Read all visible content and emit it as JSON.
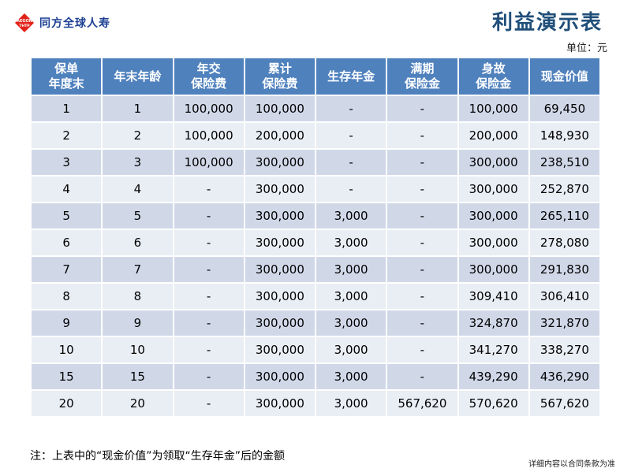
{
  "brand": {
    "logo_top": "AEGON",
    "logo_bottom": "THTP",
    "name": "同方全球人寿"
  },
  "title": "利益演示表",
  "unit": "单位：元",
  "table": {
    "headers": [
      "保单\n年度末",
      "年末年龄",
      "年交\n保险费",
      "累计\n保险费",
      "生存年金",
      "满期\n保险金",
      "身故\n保险金",
      "现金价值"
    ],
    "rows": [
      [
        "1",
        "1",
        "100,000",
        "100,000",
        "-",
        "-",
        "100,000",
        "69,450"
      ],
      [
        "2",
        "2",
        "100,000",
        "200,000",
        "-",
        "-",
        "200,000",
        "148,930"
      ],
      [
        "3",
        "3",
        "100,000",
        "300,000",
        "-",
        "-",
        "300,000",
        "238,510"
      ],
      [
        "4",
        "4",
        "-",
        "300,000",
        "-",
        "-",
        "300,000",
        "252,870"
      ],
      [
        "5",
        "5",
        "-",
        "300,000",
        "3,000",
        "-",
        "300,000",
        "265,110"
      ],
      [
        "6",
        "6",
        "-",
        "300,000",
        "3,000",
        "-",
        "300,000",
        "278,080"
      ],
      [
        "7",
        "7",
        "-",
        "300,000",
        "3,000",
        "-",
        "300,000",
        "291,830"
      ],
      [
        "8",
        "8",
        "-",
        "300,000",
        "3,000",
        "-",
        "309,410",
        "306,410"
      ],
      [
        "9",
        "9",
        "-",
        "300,000",
        "3,000",
        "-",
        "324,870",
        "321,870"
      ],
      [
        "10",
        "10",
        "-",
        "300,000",
        "3,000",
        "-",
        "341,270",
        "338,270"
      ],
      [
        "15",
        "15",
        "-",
        "300,000",
        "3,000",
        "-",
        "439,290",
        "436,290"
      ],
      [
        "20",
        "20",
        "-",
        "300,000",
        "3,000",
        "567,620",
        "570,620",
        "567,620"
      ]
    ]
  },
  "note": "注：上表中的“现金价值”为领取“生存年金”后的金额",
  "footnote": "详细内容以合同条款为准",
  "colors": {
    "header": "#4f81bd",
    "row_odd": "#d0d8e8",
    "row_even": "#e9edf4",
    "title": "#1f4e79",
    "logo": "#1c3f94",
    "logo_mark": "#e2231a"
  }
}
